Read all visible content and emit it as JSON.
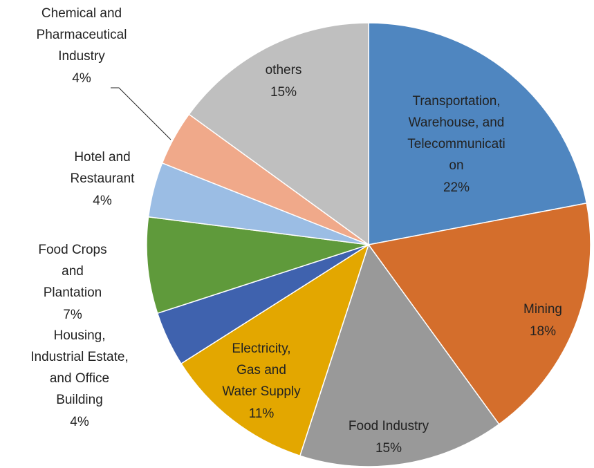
{
  "chart_data": {
    "type": "pie",
    "categories": [
      "Transportation, Warehouse, and Telecommunication",
      "Mining",
      "Food Industry",
      "Electricity, Gas and Water Supply",
      "Housing, Industrial Estate, and Office Building",
      "Food Crops and Plantation",
      "Hotel and Restaurant",
      "Chemical and Pharmaceutical Industry",
      "others"
    ],
    "values": [
      22,
      18,
      15,
      11,
      4,
      7,
      4,
      4,
      15
    ],
    "value_labels": [
      "22%",
      "18%",
      "15%",
      "11%",
      "4%",
      "7%",
      "4%",
      "4%",
      "15%"
    ],
    "colors": [
      "#4f86c0",
      "#d46e2c",
      "#999999",
      "#e3a700",
      "#3f62ae",
      "#5f9a3b",
      "#9bbde4",
      "#f0a98a",
      "#bfbfbf"
    ]
  }
}
